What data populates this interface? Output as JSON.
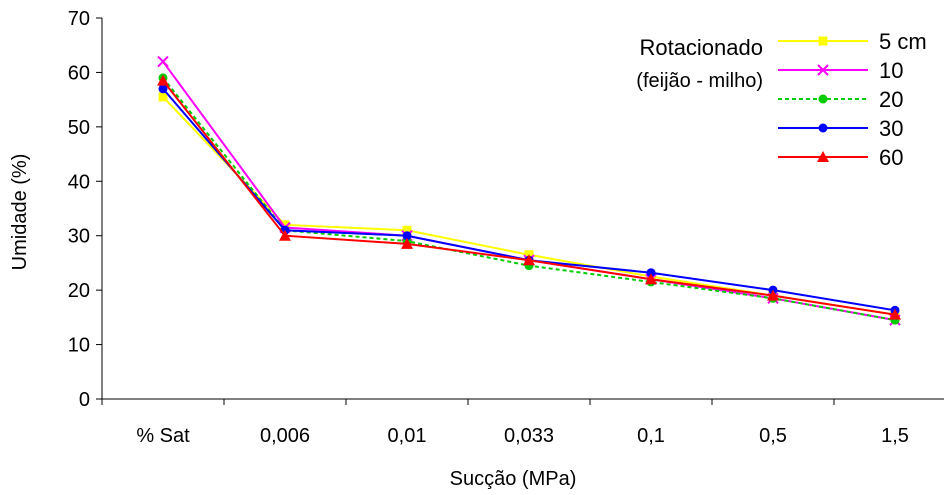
{
  "chart_data": {
    "type": "line",
    "title": "",
    "xlabel": "Sucção (MPa)",
    "ylabel": "Umidade (%)",
    "ylim": [
      0,
      70
    ],
    "yticks": [
      0,
      10,
      20,
      30,
      40,
      50,
      60,
      70
    ],
    "grid": false,
    "legend_placement": "top-right",
    "legend_title": "Rotacionado",
    "legend_subtitle": "(feijão - milho)",
    "categories": [
      "% Sat",
      "0,006",
      "0,01",
      "0,033",
      "0,1",
      "0,5",
      "1,5"
    ],
    "series": [
      {
        "name": "5 cm",
        "color": "#ffff00",
        "marker": "square",
        "dash": "solid",
        "values": [
          55.5,
          32,
          31,
          26.5,
          22.5,
          19,
          15.5
        ]
      },
      {
        "name": "10",
        "color": "#ff00ff",
        "marker": "x",
        "dash": "solid",
        "values": [
          62,
          31.5,
          30,
          25.5,
          22,
          18.5,
          14.5
        ]
      },
      {
        "name": "20",
        "color": "#00cc00",
        "marker": "circle",
        "dash": "dotted",
        "values": [
          59,
          31,
          29,
          24.5,
          21.5,
          18.5,
          14.5
        ]
      },
      {
        "name": "30",
        "color": "#0000ff",
        "marker": "circle",
        "dash": "solid",
        "values": [
          57,
          31,
          30,
          25.5,
          23.2,
          20,
          16.3
        ]
      },
      {
        "name": "60",
        "color": "#ff0000",
        "marker": "triangle",
        "dash": "solid",
        "values": [
          58.5,
          30,
          28.5,
          25.5,
          22,
          19,
          15.5
        ]
      }
    ]
  }
}
